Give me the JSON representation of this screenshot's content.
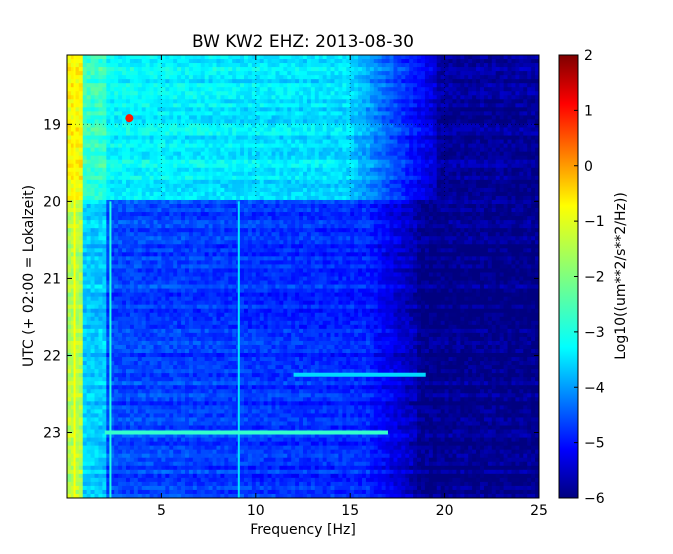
{
  "chart_data": {
    "type": "heatmap",
    "title": "BW KW2 EHZ: 2013-08-30",
    "xlabel": "Frequency [Hz]",
    "ylabel": "UTC (+ 02:00 = Lokalzeit)",
    "xlim": [
      0,
      25
    ],
    "ylim": [
      18.1,
      23.85
    ],
    "x_ticks": [
      5,
      10,
      15,
      20,
      25
    ],
    "y_ticks": [
      19,
      20,
      21,
      22,
      23
    ],
    "grid": true,
    "grid_visible_upper_part_only": true,
    "colormap": "jet",
    "colorbar": {
      "label": "Log10((um**2/s**2/Hz))",
      "range": [
        -6,
        2
      ],
      "ticks": [
        2,
        1,
        0,
        -1,
        -2,
        -3,
        -4,
        -5,
        -6
      ]
    },
    "regions": [
      {
        "time_from": 18.1,
        "time_to": 19.95,
        "description_level": -3.0,
        "freq_max": 20
      },
      {
        "time_from": 19.95,
        "time_to": 23.85,
        "description_level": -4.6,
        "freq_max": 19
      }
    ],
    "features": [
      {
        "type": "vertical_line",
        "freq": 2.3,
        "from": 20.0,
        "to": 23.85,
        "level": -2.8
      },
      {
        "type": "vertical_line",
        "freq": 9.1,
        "from": 20.0,
        "to": 23.85,
        "level": -3.2
      },
      {
        "type": "vertical_line",
        "freq": 0.4,
        "from": 18.1,
        "to": 23.85,
        "level": -1.0
      },
      {
        "type": "horizontal_band",
        "time": 23.0,
        "freq_from": 2.0,
        "freq_to": 17.0,
        "level": -2.6
      },
      {
        "type": "horizontal_band",
        "time": 22.25,
        "freq_from": 12.0,
        "freq_to": 19.0,
        "level": -3.3
      },
      {
        "type": "hotspot",
        "freq": 3.3,
        "time": 18.92,
        "level": 0.8
      }
    ]
  }
}
